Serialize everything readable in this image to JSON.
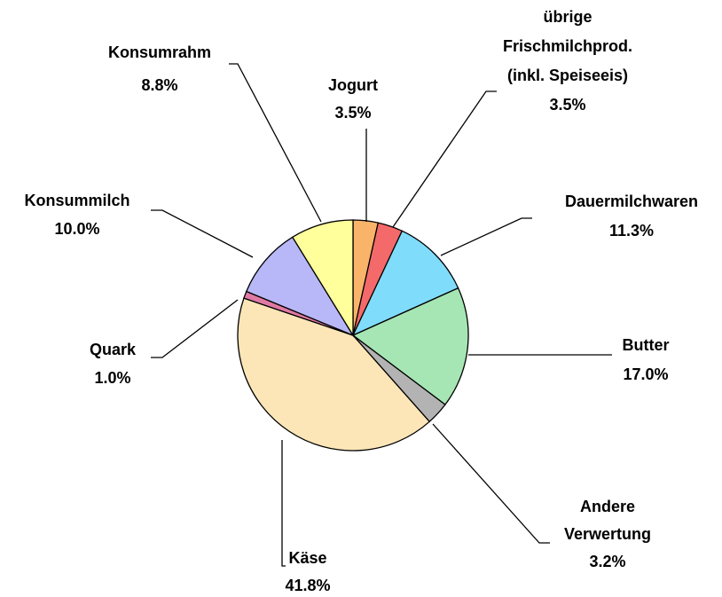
{
  "chart_data": {
    "type": "pie",
    "categories": [
      [
        "Jogurt"
      ],
      [
        "übrige",
        "Frischmilchprod.",
        "(inkl. Speiseeis)"
      ],
      [
        "Dauermilchwaren"
      ],
      [
        "Butter"
      ],
      [
        "Andere",
        "Verwertung"
      ],
      [
        "Käse"
      ],
      [
        "Quark"
      ],
      [
        "Konsummilch"
      ],
      [
        "Konsumrahm"
      ]
    ],
    "values": [
      3.5,
      3.5,
      11.3,
      17.0,
      3.2,
      41.8,
      1.0,
      10.0,
      8.8
    ],
    "value_labels": [
      "3.5%",
      "3.5%",
      "11.3%",
      "17.0%",
      "3.2%",
      "41.8%",
      "1.0%",
      "10.0%",
      "8.8%"
    ],
    "colors": [
      "#f9b46a",
      "#f46a6a",
      "#80dcfb",
      "#a6e6b4",
      "#b3b3b3",
      "#fce6b8",
      "#e07aa4",
      "#b8b8f8",
      "#ffff9c"
    ]
  }
}
